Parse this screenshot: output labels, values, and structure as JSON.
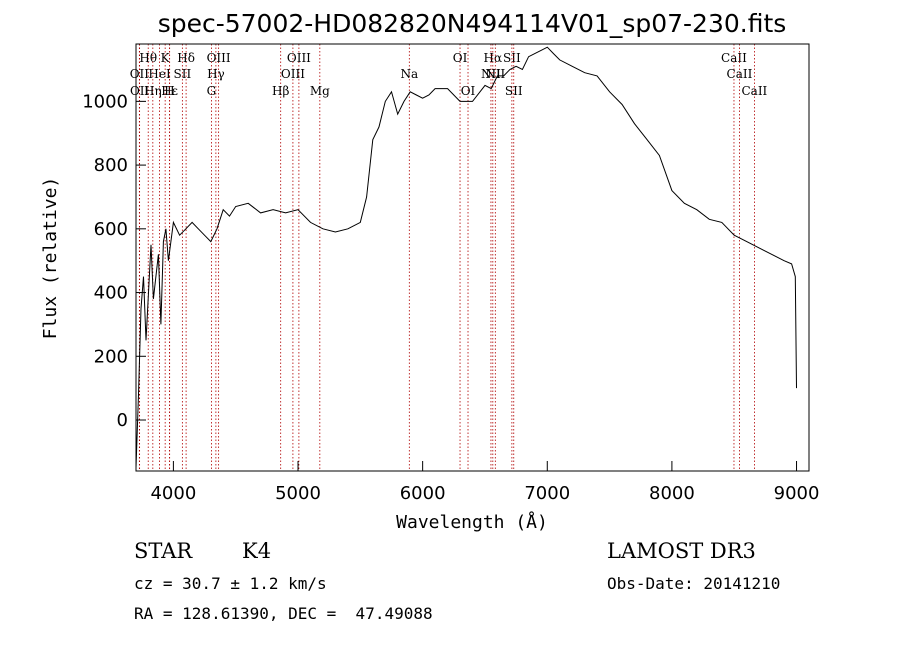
{
  "chart_data": {
    "type": "line",
    "title": "spec-57002-HD082820N494114V01_sp07-230.fits",
    "xlabel": "Wavelength (Å)",
    "ylabel": "Flux (relative)",
    "xlim": [
      3700,
      9100
    ],
    "ylim": [
      -160,
      1180
    ],
    "xticks": [
      4000,
      5000,
      6000,
      7000,
      8000,
      9000
    ],
    "yticks": [
      0,
      200,
      400,
      600,
      800,
      1000
    ],
    "grid": false,
    "series": [
      {
        "name": "flux",
        "x": [
          3700,
          3720,
          3740,
          3760,
          3780,
          3800,
          3820,
          3840,
          3860,
          3880,
          3900,
          3920,
          3940,
          3960,
          3980,
          4000,
          4050,
          4100,
          4150,
          4200,
          4250,
          4300,
          4350,
          4400,
          4450,
          4500,
          4600,
          4700,
          4800,
          4900,
          5000,
          5100,
          5200,
          5300,
          5400,
          5500,
          5550,
          5600,
          5650,
          5700,
          5750,
          5800,
          5850,
          5900,
          5950,
          6000,
          6050,
          6100,
          6200,
          6300,
          6400,
          6500,
          6550,
          6600,
          6650,
          6700,
          6750,
          6800,
          6850,
          6900,
          6950,
          7000,
          7050,
          7100,
          7200,
          7300,
          7400,
          7500,
          7600,
          7700,
          7800,
          7900,
          8000,
          8100,
          8200,
          8300,
          8400,
          8500,
          8600,
          8700,
          8800,
          8900,
          8960,
          8990,
          9000
        ],
        "y": [
          -150,
          80,
          350,
          450,
          250,
          400,
          550,
          380,
          450,
          520,
          300,
          560,
          600,
          500,
          560,
          620,
          580,
          600,
          620,
          600,
          580,
          560,
          600,
          660,
          640,
          670,
          680,
          650,
          660,
          650,
          660,
          620,
          600,
          590,
          600,
          620,
          700,
          880,
          920,
          1000,
          1030,
          960,
          1000,
          1030,
          1020,
          1010,
          1020,
          1040,
          1040,
          1000,
          1000,
          1050,
          1040,
          1080,
          1080,
          1100,
          1110,
          1100,
          1140,
          1150,
          1160,
          1170,
          1150,
          1130,
          1110,
          1090,
          1080,
          1030,
          990,
          930,
          880,
          830,
          720,
          680,
          660,
          630,
          620,
          580,
          560,
          540,
          520,
          500,
          490,
          450,
          100
        ]
      }
    ],
    "line_markers": [
      {
        "label": "Hθ",
        "x": 3798,
        "row": 1
      },
      {
        "label": "K",
        "x": 3934,
        "row": 1
      },
      {
        "label": "Hδ",
        "x": 4102,
        "row": 1
      },
      {
        "label": "OIII",
        "x": 4363,
        "row": 1
      },
      {
        "label": "OIII",
        "x": 5007,
        "row": 1
      },
      {
        "label": "OI",
        "x": 6300,
        "row": 1
      },
      {
        "label": "Hα",
        "x": 6563,
        "row": 1
      },
      {
        "label": "SII",
        "x": 6716,
        "row": 1
      },
      {
        "label": "CaII",
        "x": 8498,
        "row": 1
      },
      {
        "label": "OII",
        "x": 3727,
        "row": 2
      },
      {
        "label": "HeI",
        "x": 3889,
        "row": 2
      },
      {
        "label": "SII",
        "x": 4072,
        "row": 2
      },
      {
        "label": "Hγ",
        "x": 4341,
        "row": 2
      },
      {
        "label": "OIII",
        "x": 4959,
        "row": 2
      },
      {
        "label": "Na",
        "x": 5893,
        "row": 2
      },
      {
        "label": "NII",
        "x": 6548,
        "row": 2
      },
      {
        "label": "NII",
        "x": 6583,
        "row": 2
      },
      {
        "label": "CaII",
        "x": 8542,
        "row": 2
      },
      {
        "label": "OII",
        "x": 3729,
        "row": 3
      },
      {
        "label": "Hη",
        "x": 3835,
        "row": 3
      },
      {
        "label": "Hε",
        "x": 3970,
        "row": 3
      },
      {
        "label": "H",
        "x": 3969,
        "row": 3
      },
      {
        "label": "G",
        "x": 4305,
        "row": 3
      },
      {
        "label": "Hβ",
        "x": 4861,
        "row": 3
      },
      {
        "label": "Mg",
        "x": 5175,
        "row": 3
      },
      {
        "label": "OI",
        "x": 6364,
        "row": 3
      },
      {
        "label": "SII",
        "x": 6731,
        "row": 3
      },
      {
        "label": "CaII",
        "x": 8662,
        "row": 3
      }
    ]
  },
  "info": {
    "object_type": "STAR",
    "subclass": "K4",
    "survey": "LAMOST DR3",
    "redshift": "cz = 30.7 ± 1.2 km/s",
    "obs_date": "Obs-Date: 20141210",
    "coords": "RA = 128.61390, DEC =  47.49088"
  }
}
